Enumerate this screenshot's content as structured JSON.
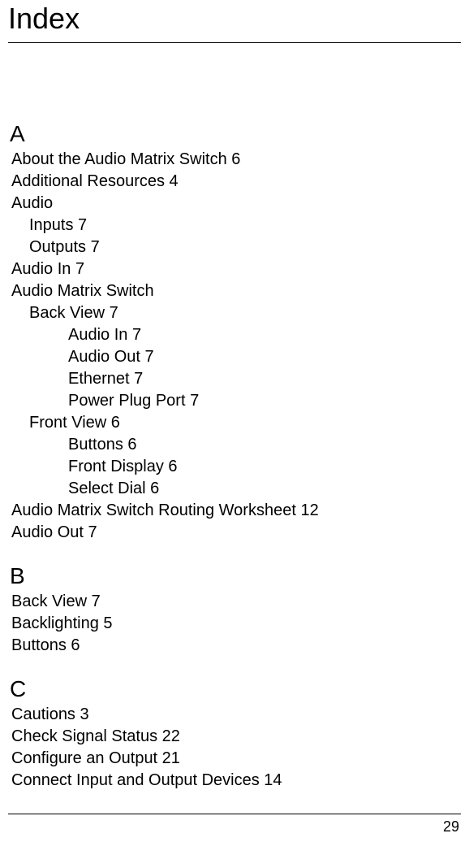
{
  "title": "Index",
  "page_number": "29",
  "sections": [
    {
      "letter": "A",
      "entries": [
        {
          "level": 1,
          "text": "About the Audio Matrix Switch 6"
        },
        {
          "level": 1,
          "text": "Additional Resources 4"
        },
        {
          "level": 1,
          "text": "Audio"
        },
        {
          "level": 2,
          "text": "Inputs 7"
        },
        {
          "level": 2,
          "text": "Outputs 7"
        },
        {
          "level": 1,
          "text": "Audio In 7"
        },
        {
          "level": 1,
          "text": "Audio Matrix Switch"
        },
        {
          "level": 2,
          "text": "Back View 7"
        },
        {
          "level": 3,
          "text": "Audio In 7"
        },
        {
          "level": 3,
          "text": "Audio Out 7"
        },
        {
          "level": 3,
          "text": "Ethernet 7"
        },
        {
          "level": 3,
          "text": "Power Plug Port 7"
        },
        {
          "level": 2,
          "text": "Front View 6"
        },
        {
          "level": 3,
          "text": "Buttons 6"
        },
        {
          "level": 3,
          "text": "Front Display 6"
        },
        {
          "level": 3,
          "text": "Select Dial 6"
        },
        {
          "level": 1,
          "text": "Audio Matrix Switch Routing Worksheet 12"
        },
        {
          "level": 1,
          "text": "Audio Out 7"
        }
      ]
    },
    {
      "letter": "B",
      "entries": [
        {
          "level": 1,
          "text": "Back View 7"
        },
        {
          "level": 1,
          "text": "Backlighting 5"
        },
        {
          "level": 1,
          "text": "Buttons 6"
        }
      ]
    },
    {
      "letter": "C",
      "entries": [
        {
          "level": 1,
          "text": "Cautions 3"
        },
        {
          "level": 1,
          "text": "Check Signal Status 22"
        },
        {
          "level": 1,
          "text": "Configure an Output 21"
        },
        {
          "level": 1,
          "text": "Connect Input and Output Devices 14"
        }
      ]
    }
  ]
}
